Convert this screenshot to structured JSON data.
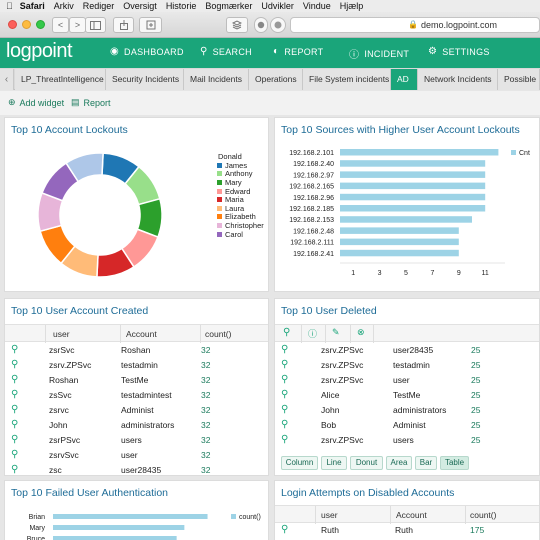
{
  "menubar": {
    "apple": "",
    "items": [
      "Safari",
      "Arkiv",
      "Rediger",
      "Oversigt",
      "Historie",
      "Bogmærker",
      "Udvikler",
      "Vindue",
      "Hjælp"
    ]
  },
  "browser": {
    "url": "demo.logpoint.com",
    "back": "<",
    "forward": ">"
  },
  "app": {
    "logo": "logpoint",
    "nav": [
      {
        "label": "DASHBOARD",
        "icon": "dashboard-icon"
      },
      {
        "label": "SEARCH",
        "icon": "search-icon"
      },
      {
        "label": "REPORT",
        "icon": "report-icon"
      },
      {
        "label": "INCIDENT",
        "icon": "incident-icon"
      },
      {
        "label": "SETTINGS",
        "icon": "settings-icon"
      }
    ],
    "accent": "#1aa57a"
  },
  "tabs": [
    "LP_ThreatIntelligence",
    "Security Incidents",
    "Mail Incidents",
    "Operations",
    "File System incidents",
    "AD",
    "Network Incidents",
    "Possible D"
  ],
  "active_tab": "AD",
  "actions": {
    "add_widget": "Add widget",
    "report": "Report"
  },
  "lockouts": {
    "title": "Top 10 Account Lockouts",
    "legend_title": "Donald",
    "legend": [
      {
        "name": "James",
        "color": "#1f77b4"
      },
      {
        "name": "Anthony",
        "color": "#98df8a"
      },
      {
        "name": "Mary",
        "color": "#2ca02c"
      },
      {
        "name": "Edward",
        "color": "#ff9896"
      },
      {
        "name": "Maria",
        "color": "#d62728"
      },
      {
        "name": "Laura",
        "color": "#ffbb78"
      },
      {
        "name": "Elizabeth",
        "color": "#ff7f0e"
      },
      {
        "name": "Christopher",
        "color": "#e7b5d9"
      },
      {
        "name": "Carol",
        "color": "#9467bd"
      }
    ]
  },
  "sources": {
    "title": "Top 10 Sources with Higher User Account Lockouts",
    "legend": "Cnt",
    "bar_color": "#9dd3e6"
  },
  "created": {
    "title": "Top 10 User Account Created",
    "headers": [
      "user",
      "Account",
      "count()"
    ],
    "rows": [
      [
        "zsrSvc",
        "Roshan",
        "32"
      ],
      [
        "zsrv.ZPSvc",
        "testadmin",
        "32"
      ],
      [
        "Roshan",
        "TestMe",
        "32"
      ],
      [
        "zsSvc",
        "testadmintest",
        "32"
      ],
      [
        "zsrvc",
        "Administ",
        "32"
      ],
      [
        "John",
        "administrators",
        "32"
      ],
      [
        "zsrPSvc",
        "users",
        "32"
      ],
      [
        "zsrvSvc",
        "user",
        "32"
      ],
      [
        "zsc",
        "user28435",
        "32"
      ]
    ]
  },
  "deleted": {
    "title": "Top 10 User Deleted",
    "rows": [
      [
        "zsrv.ZPSvc",
        "user28435",
        "25"
      ],
      [
        "zsrv.ZPSvc",
        "testadmin",
        "25"
      ],
      [
        "zsrv.ZPSvc",
        "user",
        "25"
      ],
      [
        "Alice",
        "TestMe",
        "25"
      ],
      [
        "John",
        "administrators",
        "25"
      ],
      [
        "Bob",
        "Administ",
        "25"
      ],
      [
        "zsrv.ZPSvc",
        "users",
        "25"
      ]
    ],
    "buttons": [
      "Column",
      "Line",
      "Donut",
      "Area",
      "Bar",
      "Table"
    ],
    "active_button": "Table"
  },
  "failed": {
    "title": "Top 10 Failed User Authentication",
    "legend": "count()",
    "labels": [
      "Brian",
      "Mary",
      "Bruce"
    ]
  },
  "disabled": {
    "title": "Login Attempts on Disabled Accounts",
    "headers": [
      "user",
      "Account",
      "count()"
    ],
    "rows": [
      [
        "Ruth",
        "Ruth",
        "175"
      ]
    ]
  },
  "chart_data": [
    {
      "type": "pie",
      "title": "Top 10 Account Lockouts",
      "legend_title": "Donald",
      "categories": [
        "James",
        "Anthony",
        "Mary",
        "Edward",
        "Maria",
        "Laura",
        "Elizabeth",
        "Christopher",
        "Carol",
        "Donald"
      ],
      "values": [
        10,
        10,
        10,
        10,
        10,
        10,
        10,
        10,
        10,
        10
      ],
      "colors": [
        "#1f77b4",
        "#98df8a",
        "#2ca02c",
        "#ff9896",
        "#d62728",
        "#ffbb78",
        "#ff7f0e",
        "#e7b5d9",
        "#9467bd",
        "#aec7e8"
      ]
    },
    {
      "type": "bar",
      "orientation": "horizontal",
      "title": "Top 10 Sources with Higher User Account Lockouts",
      "categories": [
        "192.168.2.101",
        "192.168.2.40",
        "192.168.2.97",
        "192.168.2.165",
        "192.168.2.96",
        "192.168.2.185",
        "192.168.2.153",
        "192.168.2.48",
        "192.168.2.111",
        "192.168.2.41"
      ],
      "series": [
        {
          "name": "Cnt",
          "values": [
            12,
            11,
            11,
            11,
            11,
            11,
            10,
            9,
            9,
            9
          ]
        }
      ],
      "xticks": [
        1,
        3,
        5,
        7,
        9,
        11
      ],
      "xlim": [
        0,
        12.5
      ]
    },
    {
      "type": "bar",
      "orientation": "horizontal",
      "title": "Top 10 Failed User Authentication",
      "categories": [
        "Brian",
        "Mary",
        "Bruce"
      ],
      "series": [
        {
          "name": "count()",
          "values": [
            100,
            85,
            80
          ]
        }
      ],
      "xlim": [
        0,
        110
      ]
    }
  ]
}
